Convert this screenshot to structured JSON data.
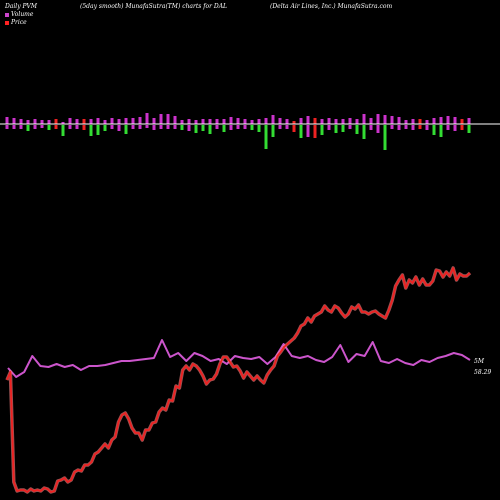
{
  "header": {
    "left": "Daily PVM",
    "center_left": "(5day smooth) MunafaSutra(TM) charts for DAL",
    "center_right": "(Delta Air Lines, Inc.) MunafaSutra.com"
  },
  "legend": [
    {
      "label": "Volume",
      "color": "#cc44cc"
    },
    {
      "label": "Price",
      "color": "#ff2222"
    }
  ],
  "colors": {
    "background": "#000000",
    "volume_up": "#cc33cc",
    "volume_down": "#33dd33",
    "volume_red": "#ee2222",
    "volume_line": "#cc55cc",
    "price_line": "#ee2222",
    "baseline": "#ffffff"
  },
  "right_labels": {
    "volume_line": "5M",
    "price": "58.29"
  },
  "chart_data": {
    "type": "line",
    "bars": [
      {
        "up": 7,
        "down": 4,
        "c": "up"
      },
      {
        "up": 6,
        "down": 4,
        "c": "up"
      },
      {
        "up": 5,
        "down": 4,
        "c": "up"
      },
      {
        "up": 4,
        "down": 6,
        "c": "down"
      },
      {
        "up": 5,
        "down": 4,
        "c": "up"
      },
      {
        "up": 4,
        "down": 3,
        "c": "up"
      },
      {
        "up": 4,
        "down": 5,
        "c": "down"
      },
      {
        "up": 5,
        "down": 4,
        "c": "red"
      },
      {
        "up": 2,
        "down": 11,
        "c": "down"
      },
      {
        "up": 6,
        "down": 4,
        "c": "up"
      },
      {
        "up": 5,
        "down": 4,
        "c": "up"
      },
      {
        "up": 5,
        "down": 5,
        "c": "red"
      },
      {
        "up": 5,
        "down": 11,
        "c": "down"
      },
      {
        "up": 6,
        "down": 10,
        "c": "down"
      },
      {
        "up": 4,
        "down": 6,
        "c": "down"
      },
      {
        "up": 6,
        "down": 4,
        "c": "up"
      },
      {
        "up": 5,
        "down": 6,
        "c": "up"
      },
      {
        "up": 6,
        "down": 9,
        "c": "down"
      },
      {
        "up": 6,
        "down": 4,
        "c": "up"
      },
      {
        "up": 7,
        "down": 4,
        "c": "up"
      },
      {
        "up": 11,
        "down": 3,
        "c": "up"
      },
      {
        "up": 6,
        "down": 5,
        "c": "up"
      },
      {
        "up": 10,
        "down": 4,
        "c": "up"
      },
      {
        "up": 10,
        "down": 4,
        "c": "up"
      },
      {
        "up": 8,
        "down": 4,
        "c": "up"
      },
      {
        "up": 4,
        "down": 5,
        "c": "down"
      },
      {
        "up": 5,
        "down": 6,
        "c": "up"
      },
      {
        "up": 4,
        "down": 8,
        "c": "down"
      },
      {
        "up": 5,
        "down": 6,
        "c": "down"
      },
      {
        "up": 5,
        "down": 9,
        "c": "down"
      },
      {
        "up": 5,
        "down": 4,
        "c": "up"
      },
      {
        "up": 5,
        "down": 7,
        "c": "down"
      },
      {
        "up": 7,
        "down": 5,
        "c": "up"
      },
      {
        "up": 6,
        "down": 4,
        "c": "up"
      },
      {
        "up": 5,
        "down": 4,
        "c": "up"
      },
      {
        "up": 4,
        "down": 5,
        "c": "down"
      },
      {
        "up": 5,
        "down": 7,
        "c": "down"
      },
      {
        "up": 6,
        "down": 24,
        "c": "down"
      },
      {
        "up": 9,
        "down": 12,
        "c": "down"
      },
      {
        "up": 6,
        "down": 4,
        "c": "up"
      },
      {
        "up": 5,
        "down": 4,
        "c": "up"
      },
      {
        "up": 3,
        "down": 7,
        "c": "red"
      },
      {
        "up": 6,
        "down": 13,
        "c": "down"
      },
      {
        "up": 8,
        "down": 12,
        "c": "up"
      },
      {
        "up": 6,
        "down": 13,
        "c": "red"
      },
      {
        "up": 5,
        "down": 10,
        "c": "down"
      },
      {
        "up": 6,
        "down": 5,
        "c": "up"
      },
      {
        "up": 5,
        "down": 8,
        "c": "down"
      },
      {
        "up": 5,
        "down": 7,
        "c": "down"
      },
      {
        "up": 6,
        "down": 4,
        "c": "up"
      },
      {
        "up": 5,
        "down": 9,
        "c": "down"
      },
      {
        "up": 10,
        "down": 14,
        "c": "down"
      },
      {
        "up": 6,
        "down": 5,
        "c": "up"
      },
      {
        "up": 10,
        "down": 8,
        "c": "up"
      },
      {
        "up": 9,
        "down": 25,
        "c": "down"
      },
      {
        "up": 8,
        "down": 4,
        "c": "up"
      },
      {
        "up": 7,
        "down": 5,
        "c": "up"
      },
      {
        "up": 4,
        "down": 4,
        "c": "up"
      },
      {
        "up": 5,
        "down": 5,
        "c": "up"
      },
      {
        "up": 5,
        "down": 4,
        "c": "red"
      },
      {
        "up": 4,
        "down": 5,
        "c": "up"
      },
      {
        "up": 6,
        "down": 10,
        "c": "down"
      },
      {
        "up": 7,
        "down": 12,
        "c": "down"
      },
      {
        "up": 8,
        "down": 5,
        "c": "up"
      },
      {
        "up": 7,
        "down": 6,
        "c": "up"
      },
      {
        "up": 5,
        "down": 5,
        "c": "red"
      },
      {
        "up": 6,
        "down": 8,
        "c": "down"
      }
    ],
    "volume_line": [
      368,
      377,
      372,
      356,
      366,
      367,
      364,
      367,
      365,
      370,
      366,
      366,
      365,
      363,
      361,
      361,
      360,
      359,
      358,
      340,
      357,
      353,
      361,
      353,
      356,
      361,
      359,
      364,
      356,
      358,
      359,
      357,
      364,
      357,
      344,
      356,
      358,
      356,
      360,
      362,
      357,
      345,
      362,
      354,
      356,
      342,
      361,
      363,
      359,
      363,
      365,
      360,
      362,
      358,
      356,
      353,
      355,
      360
    ],
    "price_line": [
      380,
      372,
      482,
      491,
      490,
      490,
      492,
      489,
      491,
      490,
      491,
      488,
      489,
      492,
      491,
      481,
      480,
      478,
      482,
      480,
      472,
      470,
      471,
      465,
      465,
      462,
      454,
      452,
      448,
      444,
      448,
      440,
      437,
      422,
      415,
      413,
      419,
      428,
      433,
      433,
      440,
      430,
      430,
      423,
      422,
      412,
      408,
      410,
      400,
      401,
      386,
      388,
      370,
      366,
      370,
      364,
      366,
      370,
      376,
      384,
      380,
      379,
      374,
      364,
      357,
      357,
      362,
      367,
      366,
      371,
      378,
      372,
      376,
      380,
      376,
      380,
      383,
      375,
      370,
      366,
      356,
      352,
      347,
      344,
      341,
      338,
      333,
      326,
      324,
      318,
      322,
      316,
      314,
      312,
      306,
      310,
      312,
      306,
      308,
      313,
      317,
      314,
      307,
      309,
      305,
      312,
      312,
      314,
      312,
      311,
      314,
      316,
      318,
      310,
      300,
      286,
      280,
      275,
      288,
      280,
      283,
      277,
      285,
      279,
      285,
      285,
      281,
      270,
      271,
      277,
      272,
      276,
      268,
      280,
      274,
      276,
      276,
      273
    ]
  }
}
